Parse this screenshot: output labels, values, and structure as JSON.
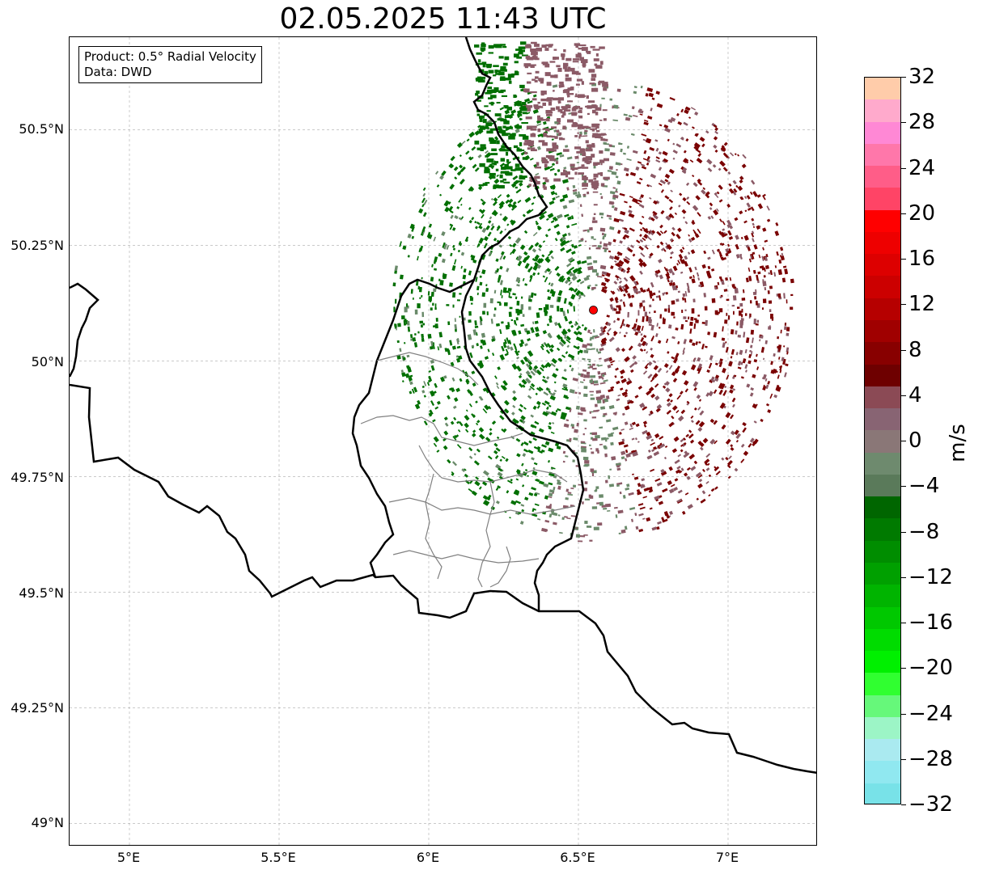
{
  "title": "02.05.2025 11:43 UTC",
  "info_box": {
    "line1": "Product: 0.5° Radial Velocity",
    "line2": "Data: DWD"
  },
  "map": {
    "lon_range": [
      4.8,
      7.3
    ],
    "lat_range": [
      48.95,
      50.7
    ],
    "lat_ticks": [
      "50.5°N",
      "50.25°N",
      "50°N",
      "49.75°N",
      "49.5°N",
      "49.25°N",
      "49°N"
    ],
    "lon_ticks": [
      "5°E",
      "5.5°E",
      "6°E",
      "6.5°E",
      "7°E"
    ],
    "gridlines": true,
    "radar_site": {
      "lon": 6.55,
      "lat": 50.11,
      "color": "#ff0000"
    },
    "border_color": "#000000",
    "admin_border_color": "#808080"
  },
  "colorbar": {
    "unit": "m/s",
    "range": [
      -32,
      32
    ],
    "tick_labels": [
      "32",
      "28",
      "24",
      "20",
      "16",
      "12",
      "8",
      "4",
      "0",
      "−4",
      "−8",
      "−12",
      "−16",
      "−20",
      "−24",
      "−28",
      "−32"
    ],
    "colors": [
      "#ffccaa",
      "#ffaacc",
      "#ff88d5",
      "#ff77aa",
      "#ff5d88",
      "#ff4466",
      "#ff0000",
      "#ee0000",
      "#dd0000",
      "#cc0000",
      "#b60000",
      "#a00000",
      "#880000",
      "#6e0000",
      "#8b4a55",
      "#886473",
      "#8a7777",
      "#6e8a6e",
      "#5a7a5a",
      "#006600",
      "#007a00",
      "#008d00",
      "#00a000",
      "#00b400",
      "#00c800",
      "#00dc00",
      "#00f000",
      "#30ff30",
      "#66f87a",
      "#9cf5c6",
      "#aaeaf0",
      "#90e8f0",
      "#78e2e8"
    ]
  },
  "velocity_legend": {
    "outbound_strong": "#7a0000",
    "outbound_weak": "#8b5a66",
    "near_zero": "#6a8a6a",
    "inbound": "#006f00"
  }
}
